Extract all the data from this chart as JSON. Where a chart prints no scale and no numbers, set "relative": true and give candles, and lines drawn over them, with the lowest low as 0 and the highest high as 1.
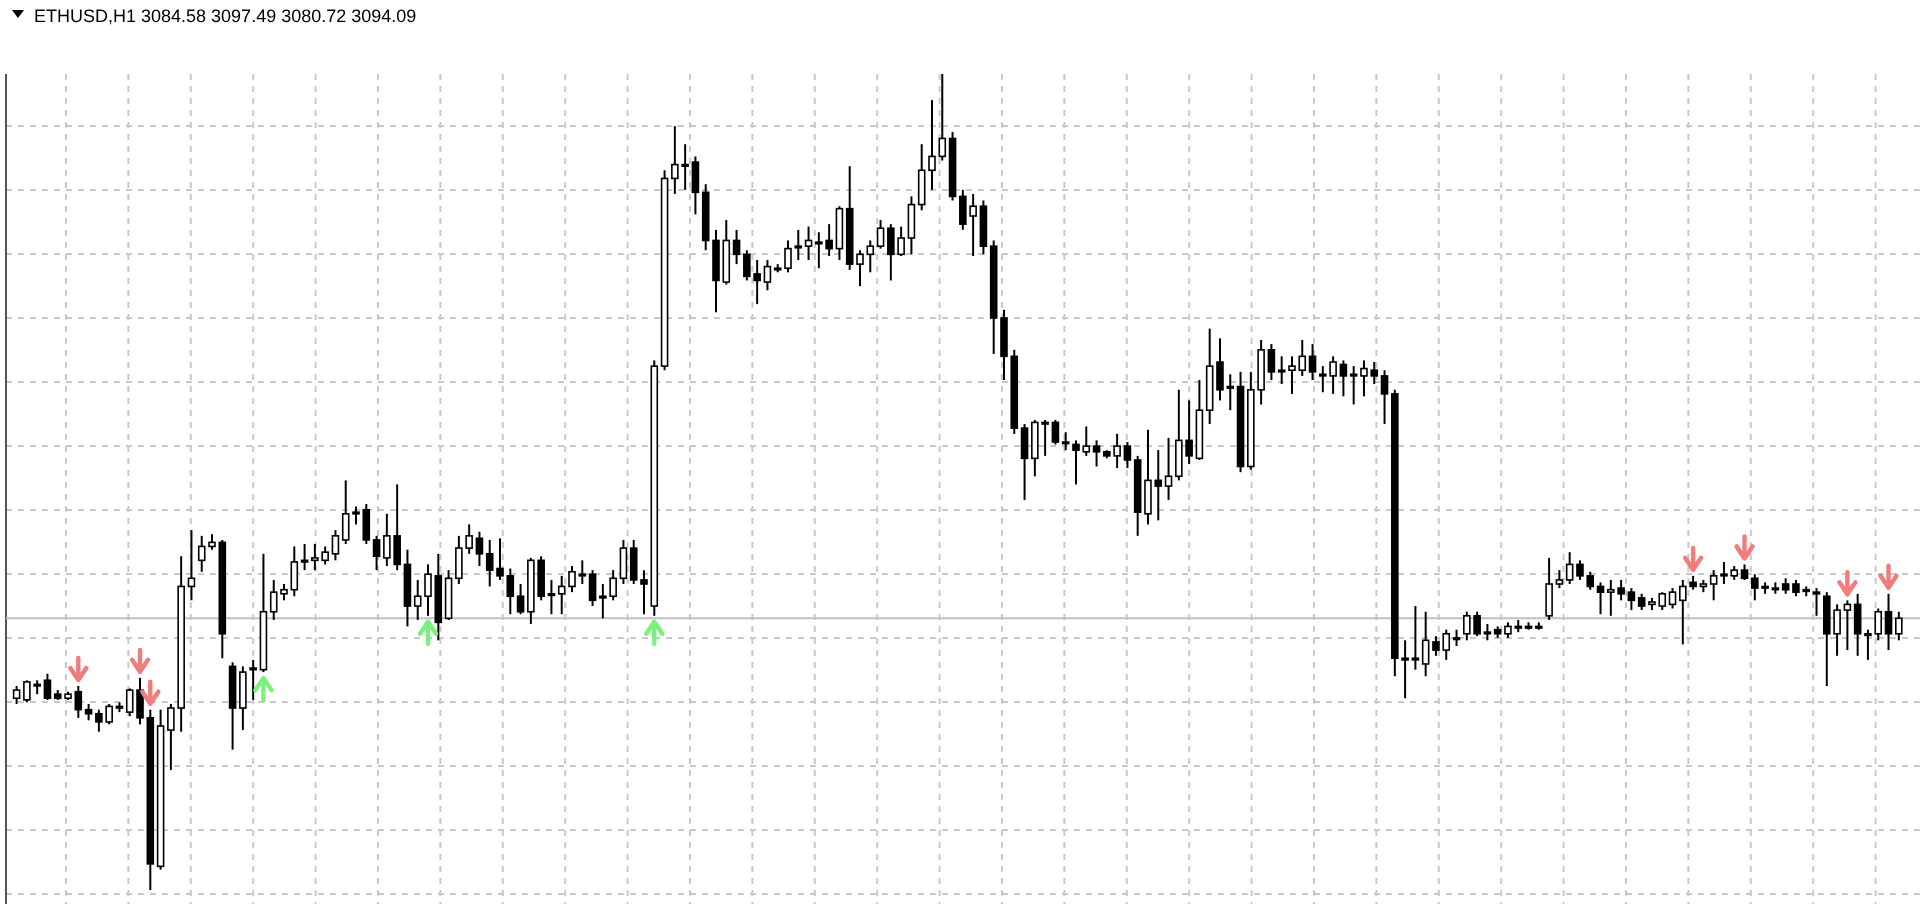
{
  "chart_data": {
    "type": "candlestick",
    "title": "ETHUSD,H1 3084.58 3097.49 3080.72 3094.09",
    "relative": true,
    "grid": true,
    "categories": [
      null,
      null,
      null,
      null,
      null,
      null,
      null,
      null,
      null,
      null,
      null,
      null,
      null,
      null,
      null,
      null,
      null,
      null,
      null,
      null,
      null,
      null,
      null,
      null,
      null,
      null,
      null,
      null,
      null,
      null,
      null,
      null,
      null,
      null,
      null,
      null,
      null,
      null,
      null,
      null,
      null,
      null,
      null,
      null,
      null,
      null,
      null,
      null,
      null,
      null,
      null,
      null,
      null,
      null,
      null,
      null,
      null,
      null,
      null,
      null,
      null,
      null,
      null,
      null,
      null,
      null,
      null,
      null,
      null,
      null,
      null,
      null,
      null,
      null,
      null,
      null,
      null,
      null,
      null,
      null,
      null,
      null,
      null,
      null,
      null,
      null,
      null,
      null,
      null,
      null,
      null,
      null,
      null,
      null,
      null,
      null,
      null,
      null,
      null,
      null,
      null,
      null,
      null,
      null,
      null,
      null,
      null,
      null,
      null,
      null,
      null,
      null,
      null,
      null,
      null,
      null,
      null,
      null,
      null,
      null,
      null,
      null,
      null,
      null,
      null,
      null,
      null,
      null,
      null,
      null,
      null,
      null,
      null,
      null,
      null,
      null,
      null,
      null,
      null,
      null,
      null,
      null,
      null,
      null,
      null,
      null,
      null,
      null,
      null,
      null,
      null,
      null,
      null,
      null,
      null,
      null,
      null,
      null,
      null,
      null,
      null,
      null,
      null,
      null,
      null,
      null,
      null,
      null,
      null,
      null,
      null,
      null,
      null,
      null,
      null,
      null,
      null,
      null,
      null,
      null,
      null,
      null,
      null,
      null
    ],
    "ref_lines": [
      {
        "axis": "y",
        "value": 0.333,
        "color": "#c0c0c0"
      }
    ],
    "ohlc": [
      [
        0.235,
        0.25,
        0.228,
        0.245
      ],
      [
        0.233,
        0.257,
        0.23,
        0.255
      ],
      [
        0.252,
        0.257,
        0.24,
        0.252
      ],
      [
        0.257,
        0.265,
        0.233,
        0.235
      ],
      [
        0.24,
        0.245,
        0.233,
        0.235
      ],
      [
        0.235,
        0.243,
        0.233,
        0.24
      ],
      [
        0.243,
        0.25,
        0.211,
        0.221
      ],
      [
        0.221,
        0.228,
        0.208,
        0.216
      ],
      [
        0.216,
        0.221,
        0.194,
        0.206
      ],
      [
        0.206,
        0.228,
        0.203,
        0.225
      ],
      [
        0.223,
        0.23,
        0.218,
        0.225
      ],
      [
        0.218,
        0.247,
        0.213,
        0.245
      ],
      [
        0.245,
        0.26,
        0.203,
        0.211
      ],
      [
        0.211,
        0.221,
        0,
        0.032
      ],
      [
        0.029,
        0.221,
        0.025,
        0.201
      ],
      [
        0.196,
        0.228,
        0.147,
        0.223
      ],
      [
        0.223,
        0.409,
        0.194,
        0.372
      ],
      [
        0.372,
        0.441,
        0.355,
        0.382
      ],
      [
        0.404,
        0.434,
        0.39,
        0.421
      ],
      [
        0.421,
        0.436,
        0.417,
        0.426
      ],
      [
        0.426,
        0.429,
        0.284,
        0.314
      ],
      [
        0.274,
        0.279,
        0.172,
        0.223
      ],
      [
        0.223,
        0.274,
        0.196,
        0.267
      ],
      [
        0.27,
        0.282,
        0.233,
        0.272
      ],
      [
        0.27,
        0.412,
        0.267,
        0.341
      ],
      [
        0.341,
        0.38,
        0.331,
        0.365
      ],
      [
        0.363,
        0.375,
        0.355,
        0.368
      ],
      [
        0.368,
        0.421,
        0.36,
        0.402
      ],
      [
        0.402,
        0.424,
        0.392,
        0.404
      ],
      [
        0.404,
        0.424,
        0.392,
        0.407
      ],
      [
        0.404,
        0.421,
        0.399,
        0.414
      ],
      [
        0.412,
        0.441,
        0.404,
        0.434
      ],
      [
        0.429,
        0.502,
        0.424,
        0.461
      ],
      [
        0.461,
        0.47,
        0.448,
        0.463
      ],
      [
        0.466,
        0.473,
        0.424,
        0.429
      ],
      [
        0.429,
        0.434,
        0.392,
        0.409
      ],
      [
        0.407,
        0.461,
        0.397,
        0.434
      ],
      [
        0.434,
        0.497,
        0.392,
        0.399
      ],
      [
        0.399,
        0.417,
        0.323,
        0.348
      ],
      [
        0.348,
        0.38,
        0.331,
        0.36
      ],
      [
        0.36,
        0.399,
        0.336,
        0.387
      ],
      [
        0.385,
        0.412,
        0.306,
        0.328
      ],
      [
        0.333,
        0.392,
        0.331,
        0.382
      ],
      [
        0.382,
        0.434,
        0.375,
        0.419
      ],
      [
        0.419,
        0.448,
        0.412,
        0.434
      ],
      [
        0.431,
        0.439,
        0.397,
        0.412
      ],
      [
        0.412,
        0.429,
        0.372,
        0.392
      ],
      [
        0.394,
        0.431,
        0.38,
        0.385
      ],
      [
        0.385,
        0.394,
        0.338,
        0.36
      ],
      [
        0.36,
        0.375,
        0.338,
        0.341
      ],
      [
        0.341,
        0.407,
        0.326,
        0.404
      ],
      [
        0.404,
        0.409,
        0.355,
        0.36
      ],
      [
        0.363,
        0.38,
        0.338,
        0.363
      ],
      [
        0.363,
        0.385,
        0.338,
        0.372
      ],
      [
        0.372,
        0.397,
        0.365,
        0.39
      ],
      [
        0.387,
        0.404,
        0.375,
        0.387
      ],
      [
        0.387,
        0.392,
        0.348,
        0.355
      ],
      [
        0.36,
        0.375,
        0.333,
        0.36
      ],
      [
        0.36,
        0.392,
        0.355,
        0.382
      ],
      [
        0.382,
        0.429,
        0.375,
        0.419
      ],
      [
        0.419,
        0.429,
        0.375,
        0.38
      ],
      [
        0.38,
        0.392,
        0.338,
        0.375
      ],
      [
        0.348,
        0.649,
        0.336,
        0.642
      ],
      [
        0.642,
        0.882,
        0.637,
        0.872
      ],
      [
        0.872,
        0.936,
        0.853,
        0.889
      ],
      [
        0.889,
        0.914,
        0.858,
        0.889
      ],
      [
        0.892,
        0.899,
        0.828,
        0.855
      ],
      [
        0.855,
        0.865,
        0.784,
        0.796
      ],
      [
        0.796,
        0.809,
        0.708,
        0.747
      ],
      [
        0.745,
        0.821,
        0.742,
        0.796
      ],
      [
        0.796,
        0.809,
        0.767,
        0.779
      ],
      [
        0.779,
        0.784,
        0.747,
        0.752
      ],
      [
        0.755,
        0.772,
        0.718,
        0.747
      ],
      [
        0.745,
        0.772,
        0.735,
        0.764
      ],
      [
        0.762,
        0.767,
        0.757,
        0.762
      ],
      [
        0.762,
        0.796,
        0.757,
        0.786
      ],
      [
        0.789,
        0.809,
        0.772,
        0.789
      ],
      [
        0.789,
        0.813,
        0.772,
        0.796
      ],
      [
        0.794,
        0.806,
        0.762,
        0.794
      ],
      [
        0.796,
        0.816,
        0.777,
        0.786
      ],
      [
        0.786,
        0.838,
        0.772,
        0.835
      ],
      [
        0.835,
        0.887,
        0.76,
        0.767
      ],
      [
        0.767,
        0.784,
        0.74,
        0.779
      ],
      [
        0.779,
        0.796,
        0.757,
        0.789
      ],
      [
        0.789,
        0.821,
        0.786,
        0.811
      ],
      [
        0.811,
        0.816,
        0.747,
        0.779
      ],
      [
        0.779,
        0.813,
        0.777,
        0.799
      ],
      [
        0.799,
        0.85,
        0.779,
        0.84
      ],
      [
        0.84,
        0.914,
        0.833,
        0.882
      ],
      [
        0.882,
        0.968,
        0.858,
        0.899
      ],
      [
        0.899,
        1,
        0.894,
        0.921
      ],
      [
        0.921,
        0.929,
        0.845,
        0.85
      ],
      [
        0.85,
        0.858,
        0.809,
        0.816
      ],
      [
        0.826,
        0.853,
        0.777,
        0.838
      ],
      [
        0.838,
        0.845,
        0.779,
        0.789
      ],
      [
        0.789,
        0.796,
        0.657,
        0.701
      ],
      [
        0.701,
        0.711,
        0.625,
        0.654
      ],
      [
        0.654,
        0.662,
        0.559,
        0.566
      ],
      [
        0.566,
        0.571,
        0.478,
        0.529
      ],
      [
        0.529,
        0.576,
        0.507,
        0.573
      ],
      [
        0.573,
        0.576,
        0.532,
        0.573
      ],
      [
        0.573,
        0.576,
        0.546,
        0.549
      ],
      [
        0.549,
        0.561,
        0.539,
        0.549
      ],
      [
        0.546,
        0.551,
        0.497,
        0.539
      ],
      [
        0.537,
        0.568,
        0.532,
        0.544
      ],
      [
        0.544,
        0.551,
        0.519,
        0.537
      ],
      [
        0.537,
        0.539,
        0.529,
        0.532
      ],
      [
        0.532,
        0.559,
        0.517,
        0.544
      ],
      [
        0.544,
        0.549,
        0.517,
        0.527
      ],
      [
        0.527,
        0.532,
        0.434,
        0.463
      ],
      [
        0.461,
        0.564,
        0.448,
        0.502
      ],
      [
        0.502,
        0.539,
        0.453,
        0.495
      ],
      [
        0.495,
        0.554,
        0.478,
        0.507
      ],
      [
        0.507,
        0.613,
        0.502,
        0.551
      ],
      [
        0.551,
        0.6,
        0.522,
        0.532
      ],
      [
        0.529,
        0.625,
        0.527,
        0.588
      ],
      [
        0.588,
        0.688,
        0.571,
        0.642
      ],
      [
        0.647,
        0.676,
        0.6,
        0.613
      ],
      [
        0.617,
        0.632,
        0.588,
        0.617
      ],
      [
        0.617,
        0.635,
        0.512,
        0.519
      ],
      [
        0.519,
        0.635,
        0.515,
        0.613
      ],
      [
        0.613,
        0.674,
        0.595,
        0.662
      ],
      [
        0.662,
        0.669,
        0.625,
        0.635
      ],
      [
        0.637,
        0.654,
        0.62,
        0.637
      ],
      [
        0.637,
        0.654,
        0.608,
        0.642
      ],
      [
        0.637,
        0.674,
        0.63,
        0.654
      ],
      [
        0.654,
        0.669,
        0.625,
        0.635
      ],
      [
        0.632,
        0.642,
        0.61,
        0.632
      ],
      [
        0.63,
        0.654,
        0.608,
        0.647
      ],
      [
        0.644,
        0.649,
        0.605,
        0.63
      ],
      [
        0.632,
        0.642,
        0.595,
        0.632
      ],
      [
        0.63,
        0.649,
        0.605,
        0.639
      ],
      [
        0.637,
        0.647,
        0.62,
        0.63
      ],
      [
        0.63,
        0.637,
        0.571,
        0.608
      ],
      [
        0.608,
        0.613,
        0.262,
        0.284
      ],
      [
        0.284,
        0.306,
        0.235,
        0.282
      ],
      [
        0.284,
        0.348,
        0.27,
        0.282
      ],
      [
        0.277,
        0.341,
        0.262,
        0.306
      ],
      [
        0.304,
        0.311,
        0.287,
        0.294
      ],
      [
        0.294,
        0.319,
        0.282,
        0.314
      ],
      [
        0.309,
        0.319,
        0.299,
        0.309
      ],
      [
        0.314,
        0.341,
        0.306,
        0.336
      ],
      [
        0.336,
        0.341,
        0.311,
        0.314
      ],
      [
        0.316,
        0.326,
        0.306,
        0.316
      ],
      [
        0.319,
        0.323,
        0.309,
        0.314
      ],
      [
        0.314,
        0.328,
        0.309,
        0.323
      ],
      [
        0.323,
        0.331,
        0.316,
        0.323
      ],
      [
        0.323,
        0.328,
        0.319,
        0.323
      ],
      [
        0.323,
        0.328,
        0.319,
        0.323
      ],
      [
        0.336,
        0.407,
        0.331,
        0.375
      ],
      [
        0.375,
        0.392,
        0.37,
        0.38
      ],
      [
        0.38,
        0.414,
        0.375,
        0.399
      ],
      [
        0.399,
        0.404,
        0.38,
        0.385
      ],
      [
        0.385,
        0.39,
        0.368,
        0.372
      ],
      [
        0.372,
        0.377,
        0.338,
        0.365
      ],
      [
        0.365,
        0.38,
        0.336,
        0.368
      ],
      [
        0.37,
        0.38,
        0.355,
        0.363
      ],
      [
        0.365,
        0.37,
        0.343,
        0.355
      ],
      [
        0.358,
        0.363,
        0.343,
        0.348
      ],
      [
        0.35,
        0.358,
        0.343,
        0.353
      ],
      [
        0.348,
        0.365,
        0.343,
        0.363
      ],
      [
        0.35,
        0.37,
        0.345,
        0.365
      ],
      [
        0.355,
        0.38,
        0.301,
        0.372
      ],
      [
        0.377,
        0.385,
        0.368,
        0.372
      ],
      [
        0.372,
        0.38,
        0.365,
        0.375
      ],
      [
        0.375,
        0.392,
        0.355,
        0.385
      ],
      [
        0.387,
        0.402,
        0.375,
        0.387
      ],
      [
        0.385,
        0.397,
        0.38,
        0.392
      ],
      [
        0.392,
        0.399,
        0.38,
        0.382
      ],
      [
        0.382,
        0.387,
        0.355,
        0.37
      ],
      [
        0.372,
        0.377,
        0.363,
        0.372
      ],
      [
        0.37,
        0.377,
        0.363,
        0.37
      ],
      [
        0.375,
        0.382,
        0.363,
        0.368
      ],
      [
        0.375,
        0.38,
        0.36,
        0.365
      ],
      [
        0.368,
        0.372,
        0.36,
        0.368
      ],
      [
        0.365,
        0.37,
        0.336,
        0.363
      ],
      [
        0.36,
        0.365,
        0.25,
        0.314
      ],
      [
        0.314,
        0.35,
        0.287,
        0.343
      ],
      [
        0.343,
        0.355,
        0.294,
        0.35
      ],
      [
        0.35,
        0.363,
        0.287,
        0.314
      ],
      [
        0.314,
        0.319,
        0.282,
        0.314
      ],
      [
        0.314,
        0.345,
        0.306,
        0.341
      ],
      [
        0.341,
        0.363,
        0.294,
        0.314
      ],
      [
        0.314,
        0.341,
        0.306,
        0.333
      ]
    ]
  }
}
